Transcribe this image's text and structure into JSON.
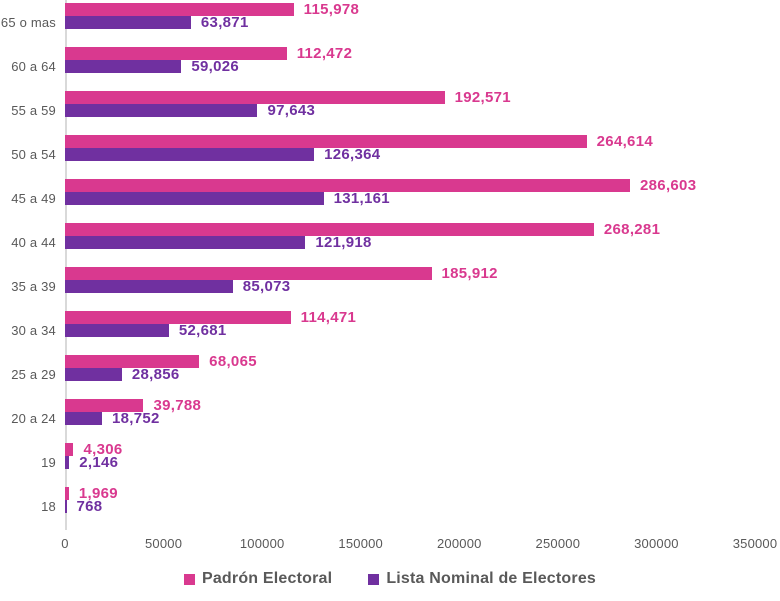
{
  "chart_data": {
    "type": "bar",
    "orientation": "horizontal",
    "title": "",
    "categories": [
      "65 o mas",
      "60 a 64",
      "55 a 59",
      "50 a 54",
      "45 a 49",
      "40 a 44",
      "35 a 39",
      "30 a 34",
      "25 a 29",
      "20 a 24",
      "19",
      "18"
    ],
    "series": [
      {
        "name": "Padrón Electoral",
        "color": "#D9398F",
        "values": [
          115978,
          112472,
          192571,
          264614,
          286603,
          268281,
          185912,
          114471,
          68065,
          39788,
          4306,
          1969
        ],
        "labels": [
          "115,978",
          "112,472",
          "192,571",
          "264,614",
          "286,603",
          "268,281",
          "185,912",
          "114,471",
          "68,065",
          "39,788",
          "4,306",
          "1,969"
        ]
      },
      {
        "name": "Lista Nominal de Electores",
        "color": "#7030A0",
        "values": [
          63871,
          59026,
          97643,
          126364,
          131161,
          121918,
          85073,
          52681,
          28856,
          18752,
          2146,
          768
        ],
        "labels": [
          "63,871",
          "59,026",
          "97,643",
          "126,364",
          "131,161",
          "121,918",
          "85,073",
          "52,681",
          "28,856",
          "18,752",
          "2,146",
          "768"
        ]
      }
    ],
    "x_axis": {
      "min": 0,
      "max": 350000,
      "tick_interval": 50000,
      "tick_labels": [
        "0",
        "50000",
        "100000",
        "150000",
        "200000",
        "250000",
        "300000",
        "350000"
      ]
    },
    "legend": {
      "position": "bottom"
    },
    "grid": false,
    "text_color": "#595959",
    "axis_line_color": "#D9D9D9",
    "background_color": "#FFFFFF"
  }
}
